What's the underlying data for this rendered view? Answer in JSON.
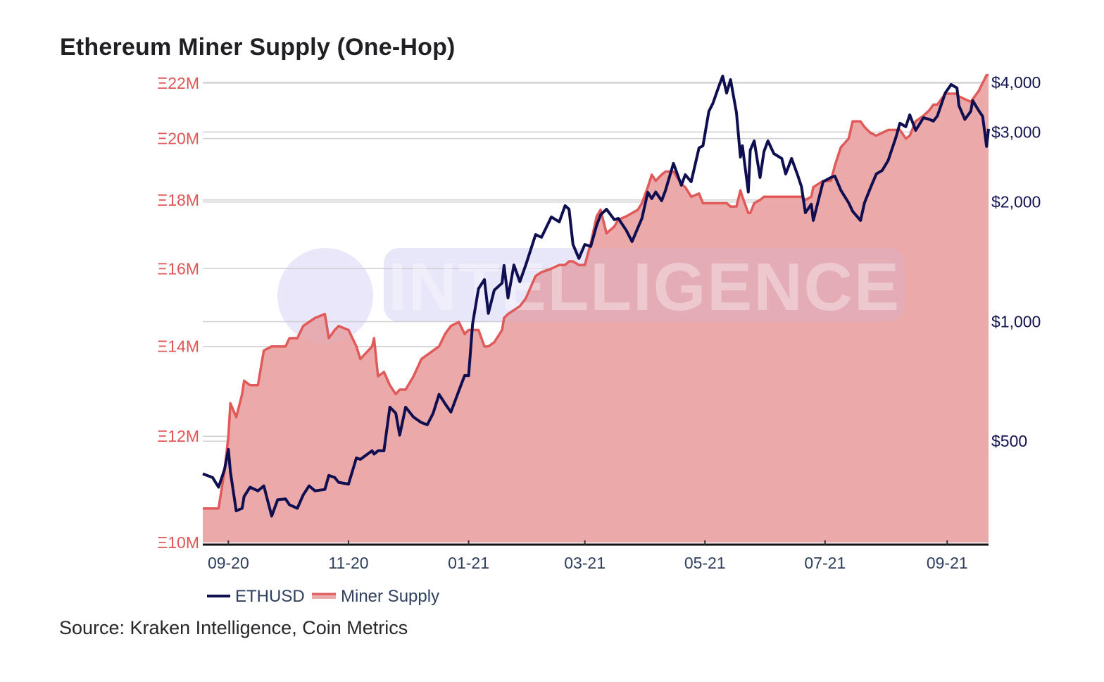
{
  "chart_data": {
    "type": "line",
    "title": "Ethereum Miner Supply (One-Hop)",
    "source": "Source: Kraken Intelligence, Coin Metrics",
    "watermark": "INTELLIGENCE",
    "legend_position": "bottom-left",
    "grid": true,
    "colors": {
      "ETHUSD": "#0e0e50",
      "Miner Supply": "#e05a5a",
      "fill": "#eba9a9",
      "left_axis": "#e05656",
      "right_axis": "#12124f"
    },
    "x": {
      "type": "date",
      "range": [
        "2020-08-19",
        "2021-09-22"
      ],
      "tick_labels": [
        "09-20",
        "11-20",
        "01-21",
        "03-21",
        "05-21",
        "07-21",
        "09-21"
      ],
      "tick_dates": [
        "2020-09-01",
        "2020-11-01",
        "2021-01-01",
        "2021-03-01",
        "2021-05-01",
        "2021-07-01",
        "2021-09-01"
      ]
    },
    "y_left": {
      "scale": "log",
      "unit": "ETH (millions)",
      "range": [
        10,
        22.48
      ],
      "ticks": [
        10,
        12,
        14,
        16,
        18,
        20,
        22
      ],
      "tick_labels": [
        "Ξ10M",
        "Ξ12M",
        "Ξ14M",
        "Ξ16M",
        "Ξ18M",
        "Ξ20M",
        "Ξ22M"
      ]
    },
    "y_right": {
      "scale": "log",
      "unit": "USD",
      "range": [
        278,
        4287
      ],
      "ticks": [
        500,
        1000,
        2000,
        3000,
        4000
      ],
      "tick_labels": [
        "$500",
        "$1,000",
        "$2,000",
        "$3,000",
        "$4,000"
      ]
    },
    "dates": [
      "2020-08-19",
      "2020-08-24",
      "2020-08-27",
      "2020-08-30",
      "2020-09-01",
      "2020-09-02",
      "2020-09-05",
      "2020-09-08",
      "2020-09-09",
      "2020-09-12",
      "2020-09-16",
      "2020-09-19",
      "2020-09-23",
      "2020-09-26",
      "2020-09-30",
      "2020-10-02",
      "2020-10-06",
      "2020-10-09",
      "2020-10-12",
      "2020-10-15",
      "2020-10-20",
      "2020-10-22",
      "2020-10-25",
      "2020-10-27",
      "2020-11-01",
      "2020-11-05",
      "2020-11-07",
      "2020-11-13",
      "2020-11-14",
      "2020-11-16",
      "2020-11-19",
      "2020-11-22",
      "2020-11-25",
      "2020-11-27",
      "2020-11-30",
      "2020-12-04",
      "2020-12-08",
      "2020-12-11",
      "2020-12-14",
      "2020-12-17",
      "2020-12-20",
      "2020-12-23",
      "2020-12-27",
      "2020-12-30",
      "2021-01-01",
      "2021-01-03",
      "2021-01-06",
      "2021-01-09",
      "2021-01-11",
      "2021-01-14",
      "2021-01-18",
      "2021-01-19",
      "2021-01-21",
      "2021-01-24",
      "2021-01-27",
      "2021-01-30",
      "2021-02-04",
      "2021-02-07",
      "2021-02-12",
      "2021-02-16",
      "2021-02-19",
      "2021-02-21",
      "2021-02-23",
      "2021-02-26",
      "2021-03-01",
      "2021-03-04",
      "2021-03-07",
      "2021-03-09",
      "2021-03-12",
      "2021-03-16",
      "2021-03-18",
      "2021-03-22",
      "2021-03-25",
      "2021-03-28",
      "2021-03-30",
      "2021-04-02",
      "2021-04-04",
      "2021-04-06",
      "2021-04-09",
      "2021-04-11",
      "2021-04-15",
      "2021-04-19",
      "2021-04-21",
      "2021-04-24",
      "2021-04-28",
      "2021-04-30",
      "2021-05-03",
      "2021-05-05",
      "2021-05-08",
      "2021-05-10",
      "2021-05-12",
      "2021-05-14",
      "2021-05-17",
      "2021-05-19",
      "2021-05-20",
      "2021-05-23",
      "2021-05-24",
      "2021-05-26",
      "2021-05-29",
      "2021-05-31",
      "2021-06-02",
      "2021-06-05",
      "2021-06-09",
      "2021-06-11",
      "2021-06-14",
      "2021-06-17",
      "2021-06-19",
      "2021-06-21",
      "2021-06-24",
      "2021-06-25",
      "2021-06-30",
      "2021-07-04",
      "2021-07-06",
      "2021-07-09",
      "2021-07-13",
      "2021-07-15",
      "2021-07-19",
      "2021-07-21",
      "2021-07-24",
      "2021-07-27",
      "2021-07-30",
      "2021-08-02",
      "2021-08-06",
      "2021-08-08",
      "2021-08-11",
      "2021-08-13",
      "2021-08-16",
      "2021-08-20",
      "2021-08-23",
      "2021-08-25",
      "2021-08-27",
      "2021-08-31",
      "2021-09-03",
      "2021-09-06",
      "2021-09-07",
      "2021-09-10",
      "2021-09-13",
      "2021-09-14",
      "2021-09-17",
      "2021-09-19",
      "2021-09-21",
      "2021-09-22"
    ],
    "series": [
      {
        "name": "ETHUSD",
        "axis": "right",
        "values": [
          414,
          405,
          383,
          424,
          477,
          419,
          334,
          339,
          363,
          383,
          375,
          386,
          324,
          356,
          358,
          346,
          339,
          366,
          386,
          375,
          378,
          410,
          405,
          394,
          390,
          454,
          450,
          473,
          464,
          473,
          473,
          609,
          588,
          518,
          609,
          575,
          557,
          550,
          588,
          656,
          622,
          592,
          669,
          732,
          731,
          986,
          1210,
          1276,
          1049,
          1200,
          1250,
          1384,
          1147,
          1388,
          1260,
          1388,
          1656,
          1630,
          1834,
          1783,
          1958,
          1918,
          1564,
          1442,
          1564,
          1546,
          1747,
          1857,
          1918,
          1805,
          1819,
          1698,
          1590,
          1725,
          1819,
          2116,
          2040,
          2120,
          2015,
          2142,
          2502,
          2204,
          2343,
          2250,
          2736,
          2771,
          3384,
          3539,
          3903,
          4150,
          3762,
          4066,
          3356,
          2595,
          2771,
          2120,
          2703,
          2850,
          2306,
          2681,
          2850,
          2648,
          2574,
          2353,
          2574,
          2343,
          2186,
          1880,
          1974,
          1797,
          2250,
          2306,
          2324,
          2142,
          1990,
          1895,
          1797,
          1990,
          2169,
          2353,
          2402,
          2543,
          2910,
          3157,
          3093,
          3315,
          3030,
          3261,
          3228,
          3196,
          3292,
          3762,
          3951,
          3872,
          3496,
          3228,
          3384,
          3598,
          3398,
          3288,
          2760,
          3056
        ]
      },
      {
        "name": "Miner Supply",
        "axis": "left",
        "values": [
          10.6,
          10.6,
          10.6,
          11.3,
          12.0,
          12.7,
          12.4,
          12.9,
          13.2,
          13.1,
          13.1,
          13.9,
          14.0,
          14.0,
          14.0,
          14.2,
          14.2,
          14.5,
          14.6,
          14.7,
          14.8,
          14.2,
          14.4,
          14.5,
          14.4,
          14.0,
          13.7,
          14.0,
          14.2,
          13.3,
          13.4,
          13.1,
          12.9,
          13.0,
          13.0,
          13.3,
          13.7,
          13.8,
          13.9,
          14.0,
          14.3,
          14.5,
          14.6,
          14.3,
          14.4,
          14.4,
          14.4,
          14.0,
          14.0,
          14.1,
          14.4,
          14.7,
          14.8,
          14.9,
          15.0,
          15.2,
          15.8,
          15.9,
          16.0,
          16.1,
          16.1,
          16.2,
          16.2,
          16.1,
          16.1,
          16.7,
          17.5,
          17.7,
          17.0,
          17.2,
          17.4,
          17.5,
          17.6,
          17.7,
          17.9,
          18.4,
          18.8,
          18.6,
          18.8,
          18.9,
          18.9,
          18.5,
          18.4,
          18.1,
          18.2,
          17.9,
          17.9,
          17.9,
          17.9,
          17.9,
          17.9,
          17.8,
          17.8,
          18.3,
          18.1,
          17.6,
          17.6,
          17.9,
          18.0,
          18.1,
          18.1,
          18.1,
          18.1,
          18.1,
          18.1,
          18.1,
          18.1,
          18.0,
          18.1,
          18.4,
          18.6,
          18.6,
          19.1,
          19.7,
          20.0,
          20.6,
          20.6,
          20.4,
          20.2,
          20.1,
          20.2,
          20.3,
          20.3,
          20.3,
          20.0,
          20.1,
          20.6,
          20.8,
          21.0,
          21.2,
          21.2,
          21.6,
          21.6,
          21.6,
          21.5,
          21.4,
          21.3,
          21.4,
          21.7,
          22.0,
          22.3,
          22.3
        ]
      }
    ]
  }
}
